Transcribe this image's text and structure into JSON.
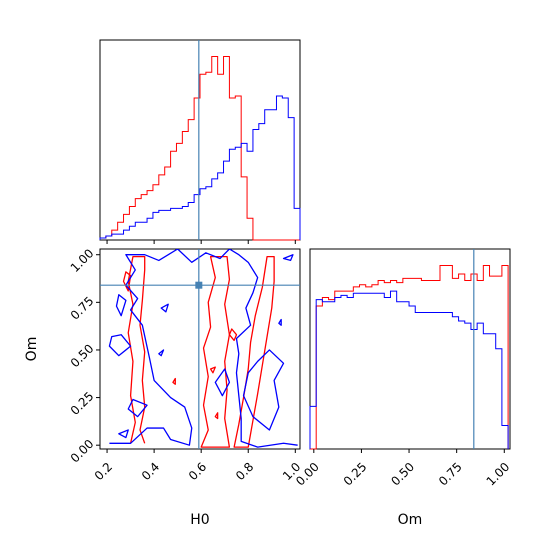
{
  "chart_data": {
    "type": "corner",
    "truth": {
      "H0": 0.59,
      "Om": 0.84
    },
    "truth_color": "#4682b4",
    "series_colors": {
      "red": "#ff0000",
      "blue": "#0000ff"
    },
    "x_labels": {
      "H0": "H0",
      "Om": "Om"
    },
    "y_label": "Om",
    "h0_ticks": [
      "0.2",
      "0.4",
      "0.6",
      "0.8",
      "1.0"
    ],
    "om_ticks": [
      "0.00",
      "0.25",
      "0.50",
      "0.75",
      "1.00"
    ],
    "h0_range": [
      0.17,
      1.02
    ],
    "om_range": [
      -0.02,
      1.03
    ],
    "hist_h0": {
      "bins": [
        0.17,
        0.195,
        0.22,
        0.245,
        0.27,
        0.295,
        0.32,
        0.345,
        0.37,
        0.395,
        0.42,
        0.445,
        0.47,
        0.495,
        0.52,
        0.545,
        0.57,
        0.595,
        0.62,
        0.645,
        0.67,
        0.695,
        0.72,
        0.745,
        0.77,
        0.795,
        0.82,
        0.845,
        0.87,
        0.895,
        0.92,
        0.945,
        0.97,
        0.995,
        1.02
      ],
      "red": [
        1,
        2,
        5,
        9,
        13,
        17,
        21,
        23,
        25,
        28,
        33,
        37,
        45,
        49,
        55,
        61,
        72,
        84,
        85,
        93,
        84,
        93,
        72,
        73,
        32,
        11,
        0,
        0,
        0,
        0,
        0,
        0,
        0,
        0
      ],
      "blue": [
        1,
        2,
        3,
        3,
        5,
        7,
        9,
        9,
        11,
        14,
        15,
        15,
        16,
        16,
        17,
        19,
        23,
        26,
        27,
        31,
        34,
        40,
        46,
        47,
        49,
        45,
        56,
        59,
        66,
        66,
        73,
        72,
        62,
        16
      ]
    },
    "hist_om": {
      "bins": [
        -0.02,
        0.0125,
        0.045,
        0.0775,
        0.11,
        0.1425,
        0.175,
        0.2075,
        0.24,
        0.2725,
        0.305,
        0.3375,
        0.37,
        0.4025,
        0.435,
        0.4675,
        0.5,
        0.5325,
        0.565,
        0.5975,
        0.63,
        0.6625,
        0.695,
        0.7275,
        0.76,
        0.7925,
        0.825,
        0.8575,
        0.89,
        0.9225,
        0.955,
        0.9875,
        1.02
      ],
      "red": [
        0,
        67,
        71,
        70,
        74,
        74,
        74,
        76,
        77,
        76,
        77,
        79,
        78,
        79,
        78,
        80,
        80,
        80,
        79,
        79,
        79,
        86,
        86,
        80,
        82,
        79,
        82,
        79,
        86,
        81,
        81,
        86
      ],
      "blue": [
        20,
        70,
        69,
        69,
        71,
        72,
        71,
        73,
        73,
        73,
        73,
        73,
        71,
        74,
        69,
        69,
        67,
        64,
        64,
        64,
        64,
        64,
        64,
        62,
        60,
        59,
        56,
        59,
        54,
        54,
        47,
        11
      ]
    },
    "contours_2d": {
      "red": [
        [
          [
            0.3,
            0.01
          ],
          [
            0.32,
            0.12
          ],
          [
            0.3,
            0.26
          ],
          [
            0.31,
            0.44
          ],
          [
            0.29,
            0.59
          ],
          [
            0.31,
            0.74
          ],
          [
            0.29,
            0.86
          ],
          [
            0.31,
            0.99
          ],
          [
            0.36,
            0.99
          ],
          [
            0.36,
            0.92
          ],
          [
            0.35,
            0.76
          ],
          [
            0.34,
            0.63
          ],
          [
            0.36,
            0.49
          ],
          [
            0.35,
            0.34
          ],
          [
            0.36,
            0.2
          ],
          [
            0.34,
            0.08
          ],
          [
            0.36,
            0.01
          ]
        ],
        [
          [
            0.27,
            0.86
          ],
          [
            0.29,
            0.81
          ],
          [
            0.3,
            0.89
          ],
          [
            0.28,
            0.91
          ]
        ],
        [
          [
            0.6,
            -0.01
          ],
          [
            0.63,
            0.08
          ],
          [
            0.61,
            0.21
          ],
          [
            0.63,
            0.36
          ],
          [
            0.61,
            0.51
          ],
          [
            0.64,
            0.62
          ],
          [
            0.63,
            0.75
          ],
          [
            0.66,
            0.88
          ],
          [
            0.64,
            0.99
          ],
          [
            0.71,
            0.99
          ],
          [
            0.72,
            0.87
          ],
          [
            0.7,
            0.74
          ],
          [
            0.72,
            0.58
          ],
          [
            0.7,
            0.44
          ],
          [
            0.71,
            0.29
          ],
          [
            0.7,
            0.14
          ],
          [
            0.72,
            -0.01
          ]
        ],
        [
          [
            0.74,
            -0.01
          ],
          [
            0.76,
            0.11
          ],
          [
            0.78,
            0.25
          ],
          [
            0.8,
            0.4
          ],
          [
            0.81,
            0.54
          ],
          [
            0.83,
            0.68
          ],
          [
            0.86,
            0.83
          ],
          [
            0.88,
            0.99
          ],
          [
            0.91,
            0.99
          ],
          [
            0.91,
            0.86
          ],
          [
            0.9,
            0.72
          ],
          [
            0.88,
            0.57
          ],
          [
            0.86,
            0.42
          ],
          [
            0.84,
            0.27
          ],
          [
            0.82,
            0.13
          ],
          [
            0.8,
            -0.01
          ]
        ],
        [
          [
            0.72,
            0.58
          ],
          [
            0.74,
            0.55
          ],
          [
            0.75,
            0.58
          ],
          [
            0.73,
            0.61
          ]
        ],
        [
          [
            0.48,
            0.33
          ],
          [
            0.49,
            0.32
          ],
          [
            0.49,
            0.35
          ]
        ],
        [
          [
            0.64,
            0.4
          ],
          [
            0.65,
            0.38
          ],
          [
            0.66,
            0.41
          ]
        ],
        [
          [
            0.66,
            0.15
          ],
          [
            0.67,
            0.14
          ],
          [
            0.67,
            0.17
          ]
        ]
      ],
      "blue": [
        [
          [
            0.21,
            0.01
          ],
          [
            0.3,
            0.01
          ],
          [
            0.37,
            0.09
          ],
          [
            0.44,
            0.09
          ],
          [
            0.47,
            0.03
          ],
          [
            0.55,
            0.0
          ],
          [
            0.56,
            0.09
          ],
          [
            0.53,
            0.2
          ],
          [
            0.47,
            0.25
          ],
          [
            0.4,
            0.34
          ],
          [
            0.38,
            0.46
          ],
          [
            0.35,
            0.63
          ],
          [
            0.3,
            0.71
          ],
          [
            0.33,
            0.77
          ],
          [
            0.28,
            0.84
          ],
          [
            0.32,
            0.92
          ],
          [
            0.28,
            1.0
          ],
          [
            0.36,
            1.0
          ],
          [
            0.42,
            0.97
          ],
          [
            0.5,
            1.03
          ],
          [
            0.56,
            0.96
          ],
          [
            0.62,
            1.01
          ],
          [
            0.68,
            0.98
          ],
          [
            0.72,
            1.03
          ],
          [
            0.76,
            1.0
          ],
          [
            0.8,
            0.96
          ],
          [
            0.84,
            0.88
          ],
          [
            0.82,
            0.8
          ],
          [
            0.79,
            0.72
          ],
          [
            0.81,
            0.63
          ],
          [
            0.75,
            0.56
          ],
          [
            0.76,
            0.48
          ],
          [
            0.75,
            0.38
          ],
          [
            0.76,
            0.26
          ],
          [
            0.77,
            0.14
          ],
          [
            0.77,
            0.02
          ],
          [
            0.84,
            -0.01
          ],
          [
            0.95,
            0.01
          ],
          [
            1.01,
            0.0
          ]
        ],
        [
          [
            0.24,
            0.73
          ],
          [
            0.26,
            0.68
          ],
          [
            0.28,
            0.76
          ],
          [
            0.25,
            0.79
          ]
        ],
        [
          [
            0.21,
            0.52
          ],
          [
            0.25,
            0.47
          ],
          [
            0.3,
            0.52
          ],
          [
            0.26,
            0.58
          ],
          [
            0.22,
            0.57
          ]
        ],
        [
          [
            0.29,
            0.19
          ],
          [
            0.33,
            0.15
          ],
          [
            0.37,
            0.21
          ],
          [
            0.31,
            0.24
          ]
        ],
        [
          [
            0.89,
            0.5
          ],
          [
            0.84,
            0.44
          ],
          [
            0.8,
            0.38
          ],
          [
            0.78,
            0.26
          ],
          [
            0.82,
            0.15
          ],
          [
            0.89,
            0.08
          ],
          [
            0.93,
            0.2
          ],
          [
            0.91,
            0.34
          ],
          [
            0.95,
            0.43
          ]
        ],
        [
          [
            0.66,
            0.33
          ],
          [
            0.69,
            0.26
          ],
          [
            0.72,
            0.33
          ],
          [
            0.7,
            0.4
          ]
        ],
        [
          [
            0.43,
            0.72
          ],
          [
            0.45,
            0.7
          ],
          [
            0.46,
            0.74
          ]
        ],
        [
          [
            0.42,
            0.48
          ],
          [
            0.43,
            0.47
          ],
          [
            0.44,
            0.5
          ]
        ],
        [
          [
            0.25,
            0.06
          ],
          [
            0.28,
            0.04
          ],
          [
            0.29,
            0.08
          ]
        ],
        [
          [
            0.95,
            0.98
          ],
          [
            0.98,
            0.97
          ],
          [
            0.99,
            1.0
          ]
        ],
        [
          [
            0.93,
            0.64
          ],
          [
            0.94,
            0.63
          ],
          [
            0.94,
            0.66
          ]
        ]
      ]
    }
  }
}
